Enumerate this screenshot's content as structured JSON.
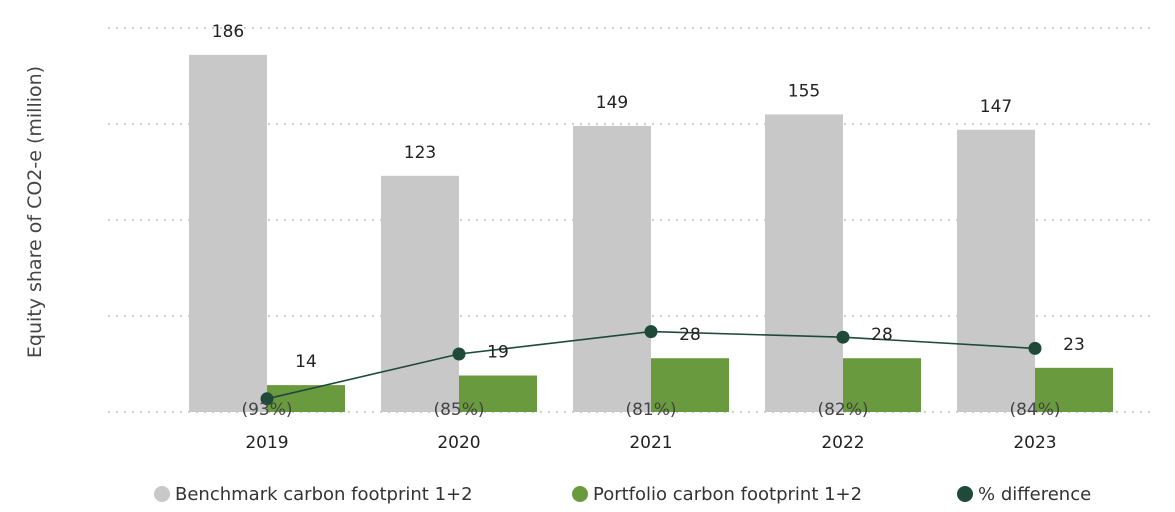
{
  "chart_data": {
    "type": "bar",
    "categories": [
      "2019",
      "2020",
      "2021",
      "2022",
      "2023"
    ],
    "series": [
      {
        "name": "Benchmark carbon footprint 1+2",
        "values": [
          186,
          123,
          149,
          155,
          147
        ],
        "color": "#c8c8c8",
        "labels": [
          "186",
          "123",
          "149",
          "155",
          "147"
        ]
      },
      {
        "name": "Portfolio carbon footprint 1+2",
        "values": [
          14,
          19,
          28,
          28,
          23
        ],
        "color": "#6a9a3e",
        "labels": [
          "14",
          "19",
          "28",
          "28",
          "23"
        ]
      },
      {
        "name": "% difference",
        "type": "line",
        "values": [
          -93,
          -85,
          -81,
          -82,
          -84
        ],
        "color": "#1f4a3a",
        "labels": [
          "(93%)",
          "(85%)",
          "(81%)",
          "(82%)",
          "(84%)"
        ]
      }
    ],
    "title": "",
    "xlabel": "",
    "ylabel": "Equity share of CO2-e (million)",
    "ylim": [
      0,
      200
    ],
    "grid": true,
    "legend_position": "bottom"
  }
}
